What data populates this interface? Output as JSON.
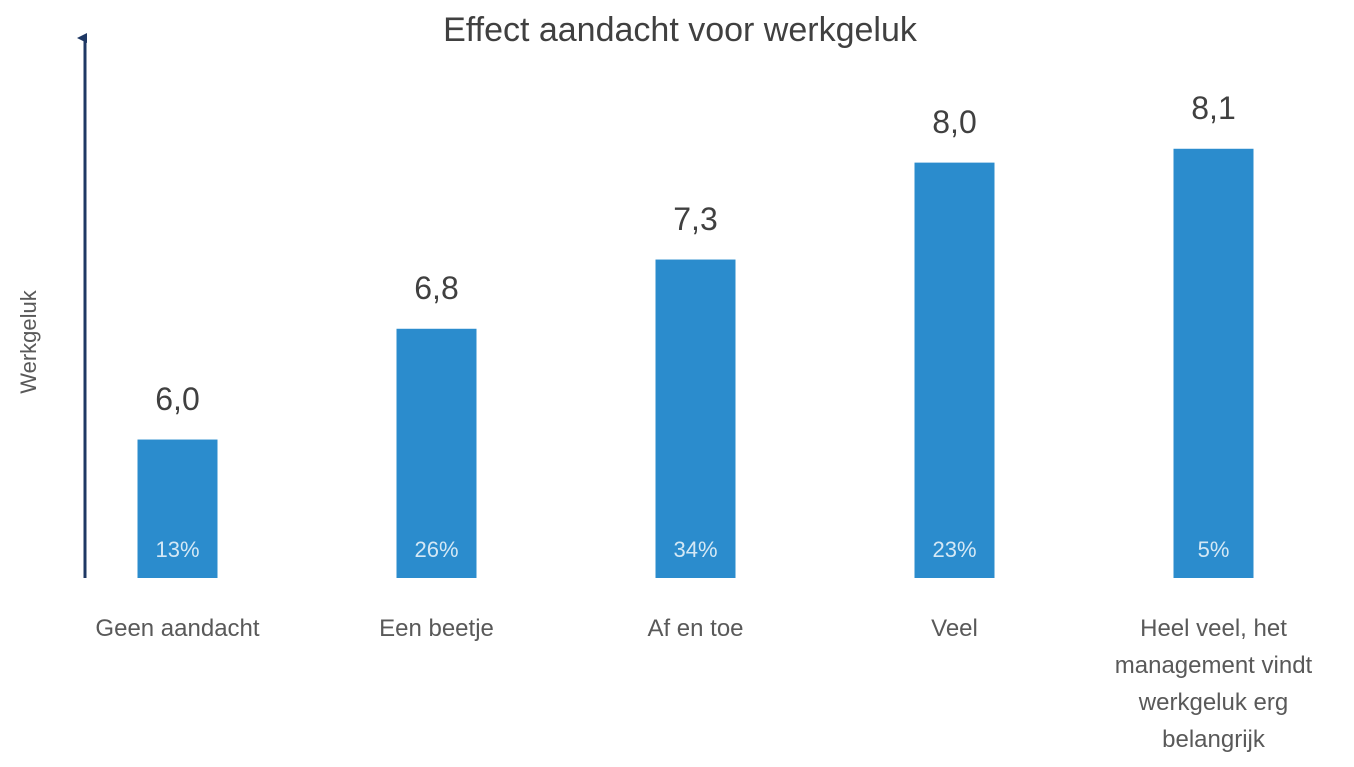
{
  "chart_data": {
    "type": "bar",
    "title": "Effect aandacht voor werkgeluk",
    "y_label": "Werkgeluk",
    "categories": [
      "Geen aandacht",
      "Een beetje",
      "Af en toe",
      "Veel",
      "Heel veel, het management vindt werkgeluk erg belangrijk"
    ],
    "values": [
      6.0,
      6.8,
      7.3,
      8.0,
      8.1
    ],
    "value_labels": [
      "6,0",
      "6,8",
      "7,3",
      "8,0",
      "8,1"
    ],
    "bar_labels": [
      "13%",
      "26%",
      "34%",
      "23%",
      "5%"
    ],
    "color": "#2b8ccd",
    "ylim": [
      5,
      8.9
    ]
  }
}
